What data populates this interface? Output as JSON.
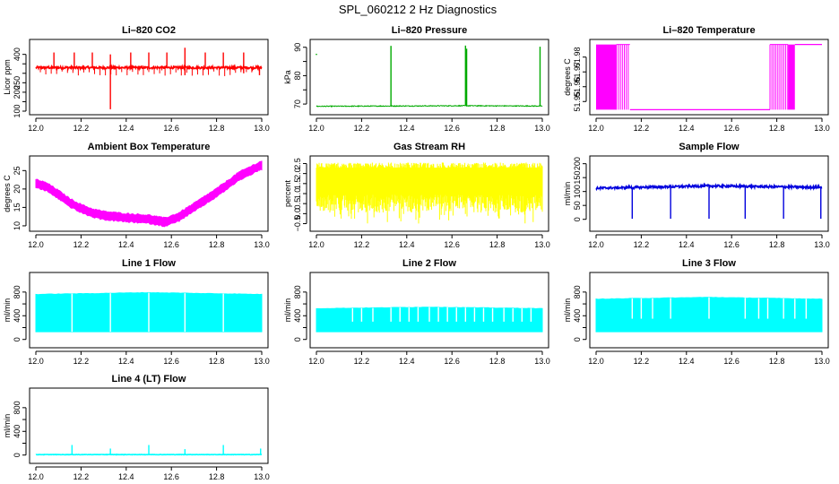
{
  "figure": {
    "title": "SPL_060212  2 Hz Diagnostics"
  },
  "chart_data": [
    {
      "id": "li820-co2",
      "type": "line",
      "title": "Li–820 CO2",
      "ylabel": "Licor ppm",
      "color": "#ff0000",
      "xlim": [
        12.0,
        13.0
      ],
      "ylim": [
        100,
        460
      ],
      "xticks": [
        12.0,
        12.2,
        12.4,
        12.6,
        12.8,
        13.0
      ],
      "xtick_labels": [
        "12.0",
        "12.2",
        "12.4",
        "12.6",
        "12.8",
        "13.0"
      ],
      "yticks": [
        100,
        150,
        200,
        250,
        300,
        350,
        400
      ],
      "ytick_labels": [
        "100",
        "",
        "200",
        "250",
        "",
        "",
        "400"
      ],
      "baseline": [
        [
          12.0,
          330
        ],
        [
          13.0,
          330
        ]
      ],
      "spikes_up": [
        [
          12.08,
          410
        ],
        [
          12.17,
          410
        ],
        [
          12.25,
          410
        ],
        [
          12.33,
          400
        ],
        [
          12.42,
          410
        ],
        [
          12.5,
          410
        ],
        [
          12.58,
          410
        ],
        [
          12.66,
          435
        ],
        [
          12.75,
          410
        ],
        [
          12.83,
          410
        ],
        [
          12.92,
          410
        ]
      ],
      "spikes_down": [
        [
          12.33,
          110
        ],
        [
          12.66,
          290
        ],
        [
          12.92,
          300
        ],
        [
          12.99,
          290
        ]
      ]
    },
    {
      "id": "li820-pressure",
      "type": "line",
      "title": "Li–820 Pressure",
      "ylabel": "kPa",
      "color": "#00aa00",
      "xlim": [
        12.0,
        13.0
      ],
      "ylim": [
        67.5,
        91.5
      ],
      "xticks": [
        12.0,
        12.2,
        12.4,
        12.6,
        12.8,
        13.0
      ],
      "xtick_labels": [
        "12.0",
        "12.2",
        "12.4",
        "12.6",
        "12.8",
        "13.0"
      ],
      "yticks": [
        70,
        75,
        80,
        85,
        90
      ],
      "ytick_labels": [
        "70",
        "",
        "80",
        "",
        "90"
      ],
      "baseline": [
        [
          12.0,
          69.2
        ],
        [
          12.33,
          69.3
        ],
        [
          12.66,
          69.4
        ],
        [
          13.0,
          69.3
        ]
      ],
      "spikes_up": [
        [
          12.33,
          90.5
        ],
        [
          12.66,
          90.6
        ],
        [
          12.665,
          89.5
        ],
        [
          12.99,
          90.2
        ]
      ],
      "spikes_down": [],
      "points": [
        [
          12.0,
          87.5
        ]
      ]
    },
    {
      "id": "li820-temperature",
      "type": "line",
      "title": "Li–820 Temperature",
      "ylabel": "degrees C",
      "color": "#ff00ff",
      "xlim": [
        12.0,
        13.0
      ],
      "ylim": [
        51.9435,
        51.9895
      ],
      "xticks": [
        12.0,
        12.2,
        12.4,
        12.6,
        12.8,
        13.0
      ],
      "xtick_labels": [
        "12.0",
        "12.2",
        "12.4",
        "12.6",
        "12.8",
        "13.0"
      ],
      "yticks": [
        51.95,
        51.96,
        51.97,
        51.98
      ],
      "ytick_labels": [
        "51.95",
        "51.96",
        "51.97",
        "51.98"
      ],
      "levels": [
        51.9445,
        51.9885
      ],
      "segments": [
        {
          "x0": 12.0,
          "x1": 12.09,
          "mode": "toggle"
        },
        {
          "x0": 12.09,
          "x1": 12.15,
          "mode": "toggle_sparse"
        },
        {
          "x0": 12.15,
          "x1": 12.77,
          "mode": "low"
        },
        {
          "x0": 12.77,
          "x1": 12.85,
          "mode": "toggle_sparse"
        },
        {
          "x0": 12.85,
          "x1": 12.88,
          "mode": "toggle"
        },
        {
          "x0": 12.88,
          "x1": 13.0,
          "mode": "high"
        }
      ]
    },
    {
      "id": "ambient-box-temperature",
      "type": "line",
      "title": "Ambient Box Temperature",
      "ylabel": "degrees C",
      "color": "#ff00ff",
      "xlim": [
        12.0,
        13.0
      ],
      "ylim": [
        9.5,
        28.0
      ],
      "xticks": [
        12.0,
        12.2,
        12.4,
        12.6,
        12.8,
        13.0
      ],
      "xtick_labels": [
        "12.0",
        "12.2",
        "12.4",
        "12.6",
        "12.8",
        "13.0"
      ],
      "yticks": [
        10,
        15,
        20,
        25
      ],
      "ytick_labels": [
        "10",
        "15",
        "20",
        "25"
      ],
      "curve": [
        [
          12.0,
          21.5
        ],
        [
          12.05,
          20.5
        ],
        [
          12.1,
          18.5
        ],
        [
          12.15,
          16.3
        ],
        [
          12.2,
          14.7
        ],
        [
          12.25,
          13.5
        ],
        [
          12.3,
          12.8
        ],
        [
          12.4,
          12.2
        ],
        [
          12.5,
          11.8
        ],
        [
          12.57,
          11.0
        ],
        [
          12.63,
          12.3
        ],
        [
          12.7,
          15.0
        ],
        [
          12.8,
          19.0
        ],
        [
          12.9,
          23.5
        ],
        [
          13.0,
          26.5
        ]
      ],
      "band": 0.9
    },
    {
      "id": "gas-stream-rh",
      "type": "line",
      "title": "Gas Stream RH",
      "ylabel": "percent",
      "color": "#ffff00",
      "xlim": [
        12.0,
        13.0
      ],
      "ylim": [
        -0.7,
        2.7
      ],
      "xticks": [
        12.0,
        12.2,
        12.4,
        12.6,
        12.8,
        13.0
      ],
      "xtick_labels": [
        "12.0",
        "12.2",
        "12.4",
        "12.6",
        "12.8",
        "13.0"
      ],
      "yticks": [
        -0.5,
        0.0,
        0.5,
        1.0,
        1.5,
        2.0,
        2.5
      ],
      "ytick_labels": [
        "−0.5",
        "0.0",
        "0.5",
        "1.0",
        "1.5",
        "2.0",
        "2.5"
      ],
      "upper_env": 2.3,
      "lower_env": 0.5,
      "peak": 2.5,
      "trough": -0.5
    },
    {
      "id": "sample-flow",
      "type": "line",
      "title": "Sample Flow",
      "ylabel": "ml/min",
      "color": "#0000dd",
      "xlim": [
        12.0,
        13.0
      ],
      "ylim": [
        -30,
        215
      ],
      "xticks": [
        12.0,
        12.2,
        12.4,
        12.6,
        12.8,
        13.0
      ],
      "xtick_labels": [
        "12.0",
        "12.2",
        "12.4",
        "12.6",
        "12.8",
        "13.0"
      ],
      "yticks": [
        0,
        50,
        100,
        150,
        200
      ],
      "ytick_labels": [
        "0",
        "50",
        "100",
        "150",
        "200"
      ],
      "baseline": [
        [
          12.0,
          112
        ],
        [
          12.5,
          120
        ],
        [
          13.0,
          115
        ]
      ],
      "spikes_down": [
        [
          12.16,
          2
        ],
        [
          12.33,
          2
        ],
        [
          12.5,
          2
        ],
        [
          12.66,
          2
        ],
        [
          12.83,
          2
        ],
        [
          12.995,
          2
        ]
      ]
    },
    {
      "id": "line-1-flow",
      "type": "line",
      "title": "Line 1 Flow",
      "ylabel": "ml/min",
      "color": "#00ffff",
      "xlim": [
        12.0,
        13.0
      ],
      "ylim": [
        -80,
        1070
      ],
      "xticks": [
        12.0,
        12.2,
        12.4,
        12.6,
        12.8,
        13.0
      ],
      "xtick_labels": [
        "12.0",
        "12.2",
        "12.4",
        "12.6",
        "12.8",
        "13.0"
      ],
      "yticks": [
        0,
        200,
        400,
        600,
        800
      ],
      "ytick_labels": [
        "0",
        "",
        "400",
        "",
        "800"
      ],
      "band_low": 130,
      "band_high": [
        [
          12.0,
          760
        ],
        [
          12.5,
          790
        ],
        [
          13.0,
          760
        ]
      ],
      "gaps": [
        12.16,
        12.33,
        12.5,
        12.66,
        12.83
      ],
      "gap_depth": 0
    },
    {
      "id": "line-2-flow",
      "type": "line",
      "title": "Line 2 Flow",
      "ylabel": "ml/min",
      "color": "#00ffff",
      "xlim": [
        12.0,
        13.0
      ],
      "ylim": [
        -80,
        1070
      ],
      "xticks": [
        12.0,
        12.2,
        12.4,
        12.6,
        12.8,
        13.0
      ],
      "xtick_labels": [
        "12.0",
        "12.2",
        "12.4",
        "12.6",
        "12.8",
        "13.0"
      ],
      "yticks": [
        0,
        200,
        400,
        600,
        800
      ],
      "ytick_labels": [
        "0",
        "",
        "400",
        "",
        "800"
      ],
      "band_low": 130,
      "band_high": [
        [
          12.0,
          520
        ],
        [
          12.5,
          545
        ],
        [
          13.0,
          520
        ]
      ],
      "gaps": [
        12.16,
        12.2,
        12.25,
        12.33,
        12.37,
        12.41,
        12.45,
        12.5,
        12.54,
        12.58,
        12.62,
        12.66,
        12.7,
        12.74,
        12.78,
        12.83,
        12.87,
        12.91,
        12.95
      ],
      "gap_depth": 300
    },
    {
      "id": "line-3-flow",
      "type": "line",
      "title": "Line 3 Flow",
      "ylabel": "ml/min",
      "color": "#00ffff",
      "xlim": [
        12.0,
        13.0
      ],
      "ylim": [
        -80,
        1070
      ],
      "xticks": [
        12.0,
        12.2,
        12.4,
        12.6,
        12.8,
        13.0
      ],
      "xtick_labels": [
        "12.0",
        "12.2",
        "12.4",
        "12.6",
        "12.8",
        "13.0"
      ],
      "yticks": [
        0,
        200,
        400,
        600,
        800
      ],
      "ytick_labels": [
        "0",
        "",
        "400",
        "",
        "800"
      ],
      "band_low": 130,
      "band_high": [
        [
          12.0,
          680
        ],
        [
          12.5,
          710
        ],
        [
          13.0,
          680
        ]
      ],
      "gaps": [
        12.16,
        12.2,
        12.25,
        12.33,
        12.5,
        12.66,
        12.72,
        12.76,
        12.83,
        12.88,
        12.93
      ],
      "gap_depth": 350
    },
    {
      "id": "line-4-lt-flow",
      "type": "line",
      "title": "Line 4 (LT) Flow",
      "ylabel": "ml/min",
      "color": "#00ffff",
      "xlim": [
        12.0,
        13.0
      ],
      "ylim": [
        -80,
        1070
      ],
      "xticks": [
        12.0,
        12.2,
        12.4,
        12.6,
        12.8,
        13.0
      ],
      "xtick_labels": [
        "12.0",
        "12.2",
        "12.4",
        "12.6",
        "12.8",
        "13.0"
      ],
      "yticks": [
        0,
        200,
        400,
        600,
        800
      ],
      "ytick_labels": [
        "0",
        "",
        "400",
        "",
        "800"
      ],
      "baseline": [
        [
          12.0,
          8
        ],
        [
          13.0,
          8
        ]
      ],
      "spikes_up": [
        [
          12.16,
          170
        ],
        [
          12.33,
          110
        ],
        [
          12.5,
          170
        ],
        [
          12.66,
          100
        ],
        [
          12.83,
          170
        ],
        [
          12.995,
          110
        ]
      ]
    }
  ]
}
